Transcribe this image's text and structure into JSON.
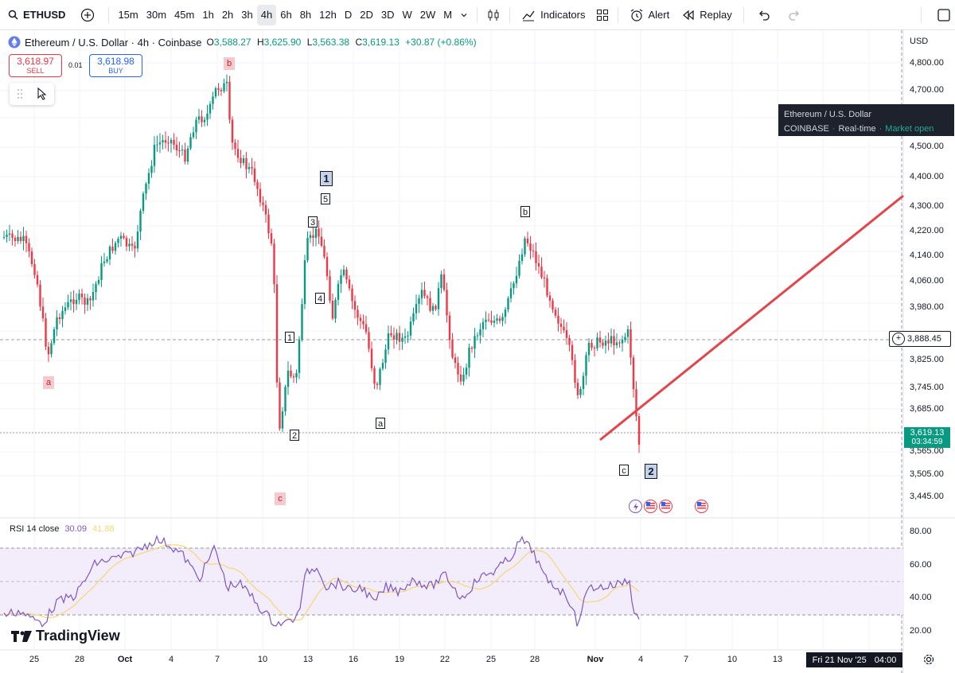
{
  "toolbar": {
    "symbol": "ETHUSD",
    "intervals": [
      "15m",
      "30m",
      "45m",
      "1h",
      "2h",
      "3h",
      "4h",
      "6h",
      "8h",
      "12h",
      "D",
      "2D",
      "3D",
      "W",
      "2W",
      "M"
    ],
    "active_interval": "4h",
    "indicators_label": "Indicators",
    "alert_label": "Alert",
    "replay_label": "Replay"
  },
  "legend": {
    "title": "Ethereum / U.S. Dollar · 4h · Coinbase",
    "o_label": "O",
    "o": "3,588.27",
    "h_label": "H",
    "h": "3,625.90",
    "l_label": "L",
    "l": "3,563.38",
    "c_label": "C",
    "c": "3,619.13",
    "change": "+30.87 (+0.86%)"
  },
  "trade": {
    "sell_price": "3,618.97",
    "sell_label": "SELL",
    "spread": "0.01",
    "buy_price": "3,618.98",
    "buy_label": "BUY"
  },
  "tooltip": {
    "line1": "Ethereum / U.S. Dollar",
    "exchange": "COINBASE",
    "realtime": "Real-time",
    "status": "Market open"
  },
  "price_axis": {
    "currency": "USD",
    "labels": [
      "4,800.00",
      "4,700.00",
      "4,500.00",
      "4,400.00",
      "4,300.00",
      "4,220.00",
      "4,140.00",
      "4,060.00",
      "3,980.00",
      "3,825.00",
      "3,745.00",
      "3,685.00",
      "3,565.00",
      "3,505.00",
      "3,445.00"
    ],
    "crosshair_price": "3,888.45",
    "current_price": "3,619.13",
    "countdown": "03:34:59"
  },
  "wave_labels": {
    "a1": "a",
    "b1": "b",
    "c1": "c",
    "big1": "1",
    "w5": "5",
    "w3": "3",
    "w4": "4",
    "w1": "1",
    "w2": "2",
    "a2": "a",
    "b2": "b",
    "c2": "c",
    "big2": "2"
  },
  "rsi": {
    "title": "RSI 14 close",
    "value": "30.09",
    "ma_value": "41.88",
    "axis": [
      "80.00",
      "60.00",
      "40.00",
      "20.00"
    ]
  },
  "time_axis": {
    "labels": [
      "25",
      "28",
      "Oct",
      "4",
      "7",
      "10",
      "13",
      "16",
      "19",
      "22",
      "25",
      "28",
      "Nov",
      "4",
      "7",
      "10",
      "13"
    ],
    "cursor_date": "Fri 21 Nov '25",
    "cursor_time": "04:00"
  },
  "brand": "TradingView",
  "colors": {
    "up": "#089981",
    "down": "#f23645",
    "trendline": "#e0474c",
    "rsi_line": "#7e57c2",
    "rsi_ma": "#f7d774",
    "rsi_band": "#f2ecfb"
  },
  "icons": {
    "symbol_search": "search-icon",
    "compare": "plus-circle-icon",
    "chart_type": "candles-icon",
    "indicators": "indicators-icon",
    "templates": "grid-icon",
    "alert": "alarm-clock-icon",
    "replay": "rewind-icon",
    "undo": "undo-icon",
    "redo": "redo-icon",
    "layout": "square-icon",
    "cursor": "cursor-icon",
    "settings": "gear-icon"
  }
}
